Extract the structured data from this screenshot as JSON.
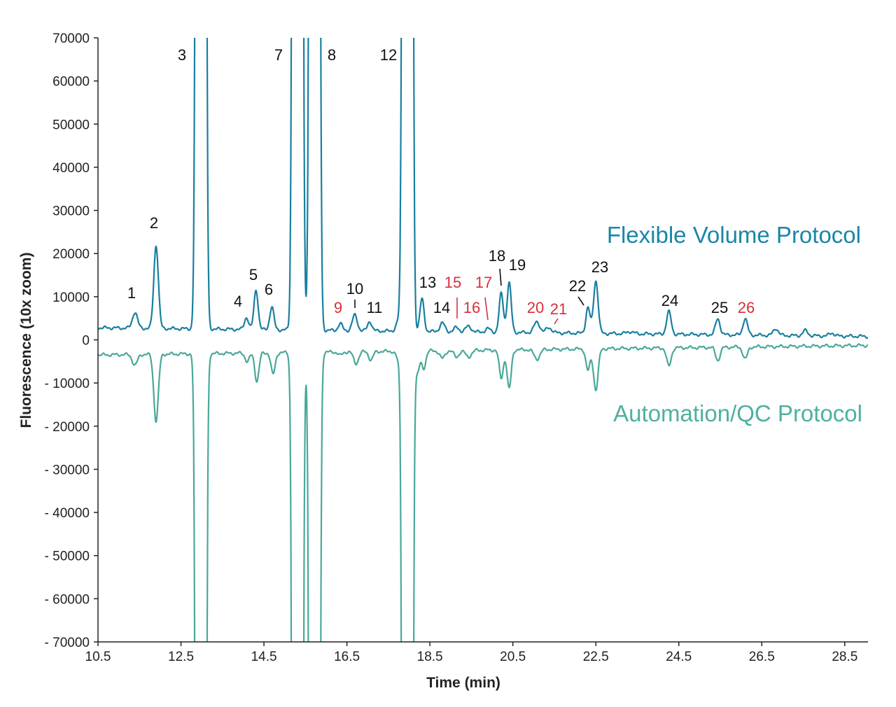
{
  "chart_data": {
    "type": "line",
    "xlabel": "Time (min)",
    "ylabel": "Fluorescence (10x zoom)",
    "xlim": [
      10.5,
      29.06
    ],
    "ylim": [
      -70000,
      70000
    ],
    "xticks": [
      10.5,
      12.5,
      14.5,
      16.5,
      18.5,
      20.5,
      22.5,
      24.5,
      26.5,
      28.5
    ],
    "xtick_labels": [
      "10.5",
      "12.5",
      "14.5",
      "16.5",
      "18.5",
      "20.5",
      "22.5",
      "24.5",
      "26.5",
      "28.5"
    ],
    "yticks": [
      70000,
      60000,
      50000,
      40000,
      30000,
      20000,
      10000,
      0,
      -10000,
      -20000,
      -30000,
      -40000,
      -50000,
      -60000,
      -70000
    ],
    "ytick_labels": [
      "70000",
      "60000",
      "50000",
      "40000",
      "30000",
      "20000",
      "10000",
      "0",
      "- 10000",
      "- 20000",
      "- 30000",
      "- 40000",
      "- 50000",
      "- 60000",
      "- 70000"
    ],
    "grid": false,
    "series": [
      {
        "name": "Flexible Volume Protocol",
        "color": "#1a7fa0",
        "baseline": [
          2800,
          800
        ],
        "peaks_time_height_sigma": [
          [
            11.39,
            3700,
            0.06
          ],
          [
            11.9,
            19300,
            0.055
          ],
          [
            12.98,
            2000000,
            0.058
          ],
          [
            14.08,
            2800,
            0.05
          ],
          [
            14.31,
            9200,
            0.05
          ],
          [
            14.69,
            5300,
            0.05
          ],
          [
            15.31,
            2000000,
            0.058
          ],
          [
            15.72,
            2000000,
            0.058
          ],
          [
            16.34,
            1600,
            0.05
          ],
          [
            16.69,
            3600,
            0.06
          ],
          [
            17.05,
            2200,
            0.05
          ],
          [
            17.75,
            2500,
            0.06
          ],
          [
            17.96,
            2000000,
            0.058
          ],
          [
            18.31,
            7500,
            0.05
          ],
          [
            18.8,
            2000,
            0.06
          ],
          [
            19.14,
            1000,
            0.06
          ],
          [
            19.43,
            1300,
            0.07
          ],
          [
            19.9,
            800,
            0.06
          ],
          [
            20.22,
            9000,
            0.05
          ],
          [
            20.41,
            11500,
            0.05
          ],
          [
            21.08,
            2500,
            0.07
          ],
          [
            21.37,
            1200,
            0.07
          ],
          [
            22.31,
            6000,
            0.05
          ],
          [
            22.5,
            12200,
            0.055
          ],
          [
            23.33,
            500,
            0.08
          ],
          [
            24.26,
            5200,
            0.055
          ],
          [
            25.44,
            3700,
            0.055
          ],
          [
            26.1,
            3800,
            0.055
          ],
          [
            26.84,
            1600,
            0.06
          ],
          [
            27.55,
            1200,
            0.06
          ],
          [
            28.19,
            700,
            0.06
          ]
        ]
      },
      {
        "name": "Automation/QC Protocol",
        "color": "#4aa89a",
        "baseline": [
          -3500,
          -1300
        ],
        "peaks_time_height_sigma": [
          [
            11.39,
            -2500,
            0.06
          ],
          [
            11.9,
            -15500,
            0.055
          ],
          [
            12.98,
            -2000000,
            0.058
          ],
          [
            14.1,
            -2000,
            0.05
          ],
          [
            14.33,
            -6500,
            0.05
          ],
          [
            14.72,
            -5000,
            0.05
          ],
          [
            15.31,
            -2000000,
            0.058
          ],
          [
            15.72,
            -2000000,
            0.058
          ],
          [
            16.34,
            -800,
            0.05
          ],
          [
            16.72,
            -2700,
            0.06
          ],
          [
            17.08,
            -2000,
            0.05
          ],
          [
            17.75,
            -2000,
            0.06
          ],
          [
            17.96,
            -2000000,
            0.058
          ],
          [
            18.2,
            -5000,
            0.05
          ],
          [
            18.35,
            -4000,
            0.05
          ],
          [
            18.8,
            -1800,
            0.06
          ],
          [
            19.14,
            -1500,
            0.06
          ],
          [
            19.43,
            -1500,
            0.07
          ],
          [
            20.22,
            -6500,
            0.05
          ],
          [
            20.41,
            -9000,
            0.05
          ],
          [
            21.08,
            -2200,
            0.07
          ],
          [
            22.31,
            -5000,
            0.05
          ],
          [
            22.5,
            -9500,
            0.055
          ],
          [
            24.26,
            -4200,
            0.055
          ],
          [
            25.44,
            -3000,
            0.055
          ],
          [
            26.1,
            -2800,
            0.055
          ]
        ]
      }
    ],
    "peak_labels": [
      {
        "text": "1",
        "color": "#111"
      },
      {
        "text": "2",
        "color": "#111"
      },
      {
        "text": "3",
        "color": "#111"
      },
      {
        "text": "4",
        "color": "#111"
      },
      {
        "text": "5",
        "color": "#111"
      },
      {
        "text": "6",
        "color": "#111"
      },
      {
        "text": "7",
        "color": "#111"
      },
      {
        "text": "8",
        "color": "#111"
      },
      {
        "text": "9",
        "color": "#d6303a"
      },
      {
        "text": "10",
        "color": "#111"
      },
      {
        "text": "11",
        "color": "#111"
      },
      {
        "text": "12",
        "color": "#111"
      },
      {
        "text": "13",
        "color": "#111"
      },
      {
        "text": "14",
        "color": "#111"
      },
      {
        "text": "15",
        "color": "#d6303a"
      },
      {
        "text": "16",
        "color": "#d6303a"
      },
      {
        "text": "17",
        "color": "#d6303a"
      },
      {
        "text": "18",
        "color": "#111"
      },
      {
        "text": "19",
        "color": "#111"
      },
      {
        "text": "20",
        "color": "#d6303a"
      },
      {
        "text": "21",
        "color": "#d6303a"
      },
      {
        "text": "22",
        "color": "#111"
      },
      {
        "text": "23",
        "color": "#111"
      },
      {
        "text": "24",
        "color": "#111"
      },
      {
        "text": "25",
        "color": "#111"
      },
      {
        "text": "26",
        "color": "#d6303a"
      }
    ]
  }
}
